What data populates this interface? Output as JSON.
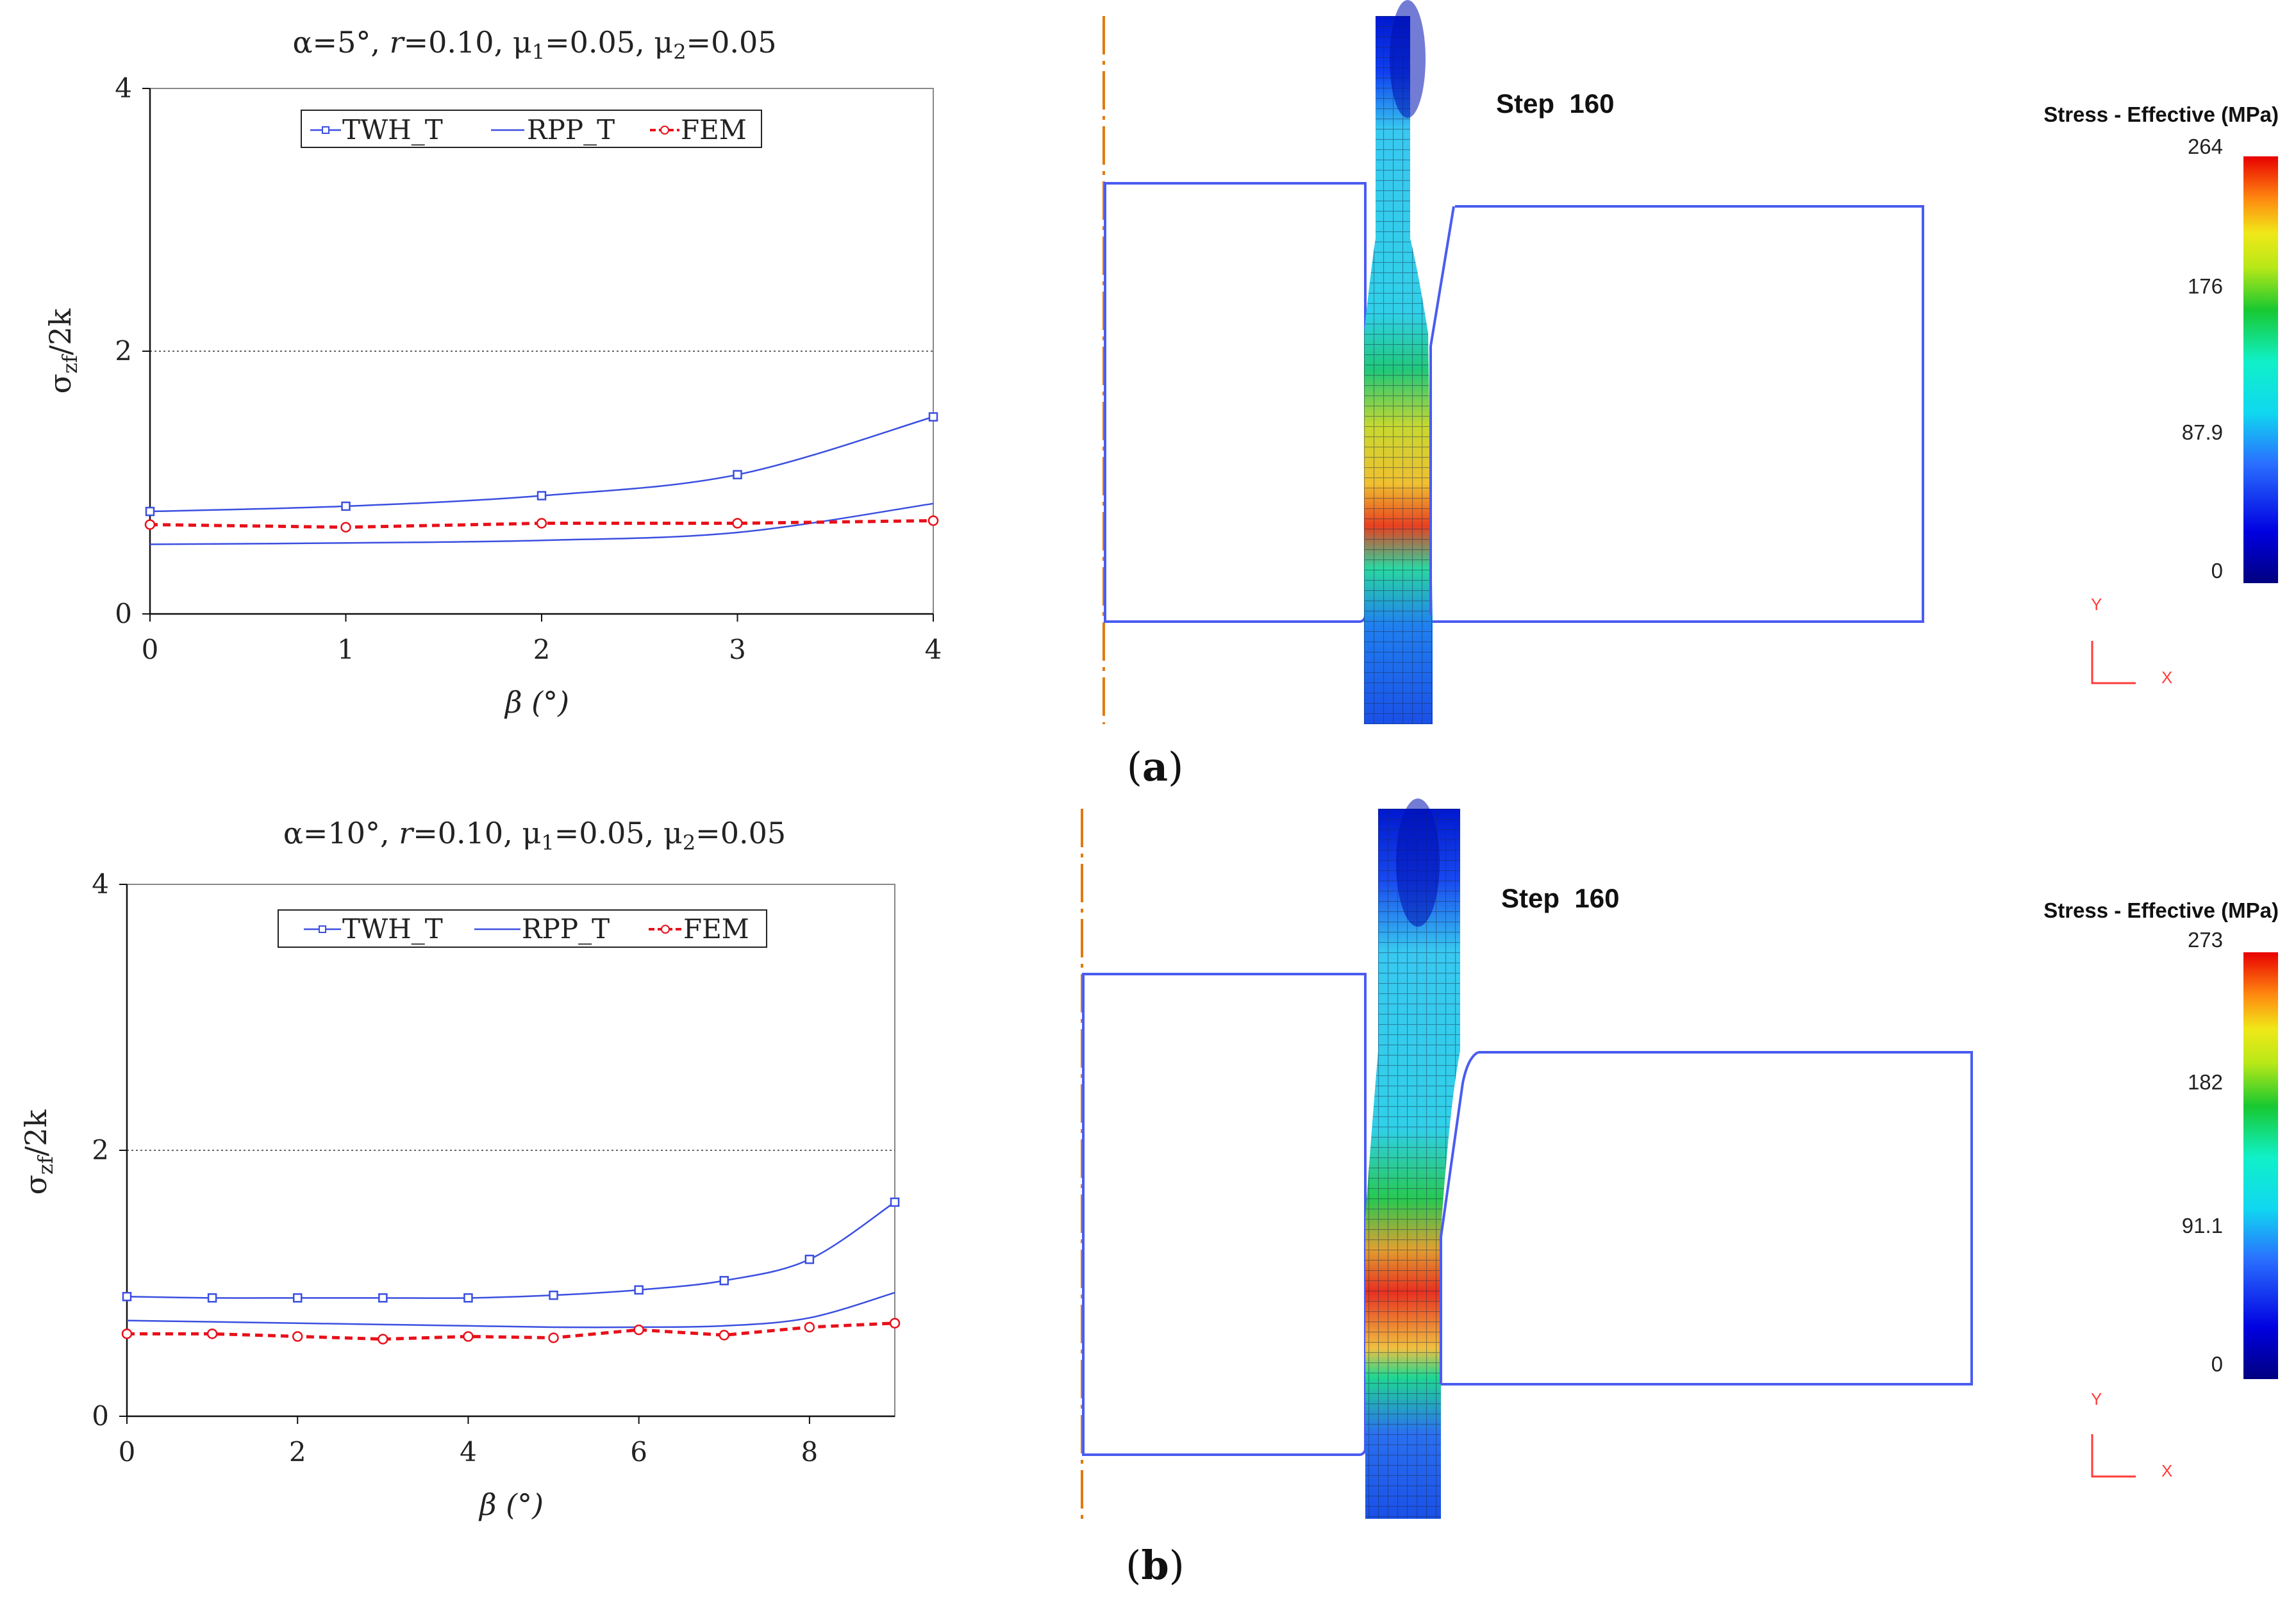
{
  "chart_data": [
    {
      "type": "line",
      "title": "α=5°, r=0.10, μ1=0.05, μ2=0.05",
      "title_parts": [
        "α=5°, ",
        "r",
        "=0.10, μ",
        "1",
        "=0.05, μ",
        "2",
        "=0.05"
      ],
      "xlabel": "β (°)",
      "ylabel_main": "σ",
      "ylabel_sub": "zf",
      "ylabel_tail": "/2k",
      "xlim": [
        0,
        4
      ],
      "ylim": [
        0,
        4
      ],
      "xticks": [
        "0",
        "1",
        "2",
        "3",
        "4"
      ],
      "yticks": [
        "0",
        "2",
        "4"
      ],
      "reference_line": 2,
      "legend": [
        "TWH_T",
        "RPP_T",
        "FEM"
      ],
      "series": [
        {
          "name": "TWH_T",
          "color": "#3b4fe0",
          "marker": "square",
          "x": [
            0,
            1,
            2,
            3,
            4
          ],
          "y": [
            0.78,
            0.82,
            0.9,
            1.06,
            1.5
          ]
        },
        {
          "name": "RPP_T",
          "color": "#3b4fe0",
          "marker": "none",
          "x": [
            0,
            1,
            2,
            3,
            4
          ],
          "y": [
            0.53,
            0.54,
            0.56,
            0.62,
            0.84
          ]
        },
        {
          "name": "FEM",
          "color": "#e8101a",
          "marker": "circle",
          "dashed": true,
          "x": [
            0,
            1,
            2,
            3,
            4
          ],
          "y": [
            0.68,
            0.66,
            0.69,
            0.69,
            0.71
          ]
        }
      ]
    },
    {
      "type": "line",
      "title": "α=10°, r=0.10, μ1=0.05, μ2=0.05",
      "title_parts": [
        "α=10°, ",
        "r",
        "=0.10, μ",
        "1",
        "=0.05, μ",
        "2",
        "=0.05"
      ],
      "xlabel": "β (°)",
      "ylabel_main": "σ",
      "ylabel_sub": "zf",
      "ylabel_tail": "/2k",
      "xlim": [
        0,
        9
      ],
      "ylim": [
        0,
        4
      ],
      "xticks": [
        "0",
        "2",
        "4",
        "6",
        "8"
      ],
      "yticks": [
        "0",
        "2",
        "4"
      ],
      "reference_line": 2,
      "legend": [
        "TWH_T",
        "RPP_T",
        "FEM"
      ],
      "series": [
        {
          "name": "TWH_T",
          "color": "#3b4fe0",
          "marker": "square",
          "x": [
            0,
            1,
            2,
            3,
            4,
            5,
            6,
            7,
            8,
            9
          ],
          "y": [
            0.9,
            0.89,
            0.89,
            0.89,
            0.89,
            0.91,
            0.95,
            1.02,
            1.18,
            1.61
          ]
        },
        {
          "name": "RPP_T",
          "color": "#3b4fe0",
          "marker": "none",
          "x": [
            0,
            1,
            2,
            3,
            4,
            5,
            6,
            7,
            8,
            9
          ],
          "y": [
            0.72,
            0.71,
            0.7,
            0.69,
            0.68,
            0.67,
            0.67,
            0.68,
            0.74,
            0.93
          ]
        },
        {
          "name": "FEM",
          "color": "#e8101a",
          "marker": "circle",
          "dashed": true,
          "x": [
            0,
            1,
            2,
            3,
            4,
            5,
            6,
            7,
            8,
            9
          ],
          "y": [
            0.62,
            0.62,
            0.6,
            0.58,
            0.6,
            0.59,
            0.65,
            0.61,
            0.67,
            0.7
          ]
        }
      ]
    }
  ],
  "fem_panels": [
    {
      "step_label": "Step  160",
      "legend_title": "Stress - Effective (MPa)",
      "scale_ticks": [
        "264",
        "176",
        "87.9",
        "0"
      ],
      "scale_values": [
        264,
        176,
        87.9,
        0
      ],
      "axis_y": "Y",
      "axis_x": "X",
      "panel_label": "a"
    },
    {
      "step_label": "Step  160",
      "legend_title": "Stress - Effective (MPa)",
      "scale_ticks": [
        "273",
        "182",
        "91.1",
        "0"
      ],
      "scale_values": [
        273,
        182,
        91.1,
        0
      ],
      "axis_y": "Y",
      "axis_x": "X",
      "panel_label": "b"
    }
  ],
  "colors": {
    "series_blue": "#3b4fe0",
    "fem_red": "#e8101a",
    "die_outline": "#4a5cf0",
    "centerline": "#e07a10",
    "axis_triad": "#ff3b3b"
  }
}
